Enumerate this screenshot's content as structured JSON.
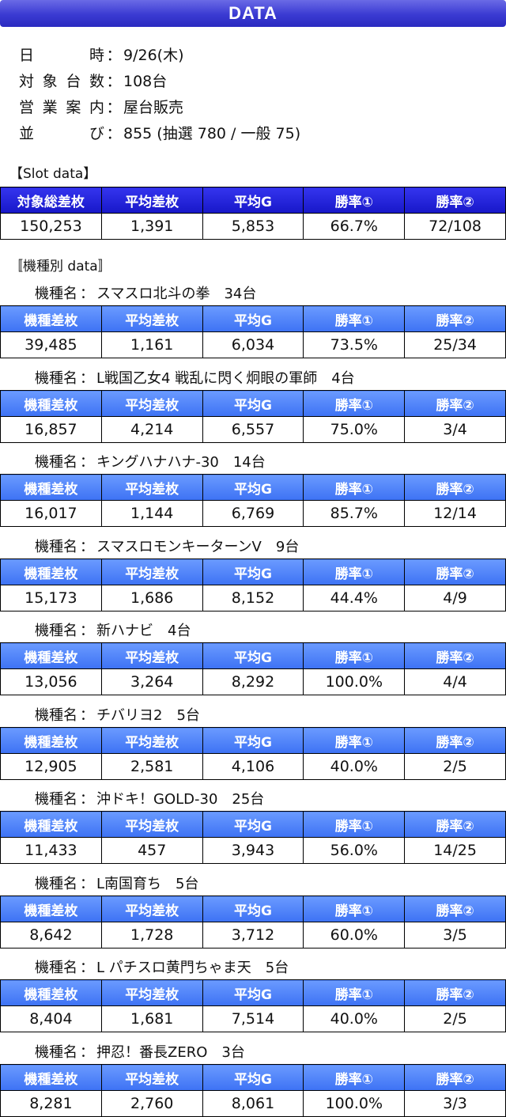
{
  "banner_title": "DATA",
  "info": [
    {
      "key": "日時",
      "value": "9/26(木)"
    },
    {
      "key": "対象台数",
      "value": "108台"
    },
    {
      "key": "営業案内",
      "value": "屋台販売"
    },
    {
      "key": "並び",
      "value": "855 (抽選 780 / 一般 75)"
    }
  ],
  "info_separator": "：",
  "slot_section_label": "【Slot data】",
  "slot_headers": [
    "対象総差枚",
    "平均差枚",
    "平均G",
    "勝率①",
    "勝率②"
  ],
  "slot_values": [
    "150,253",
    "1,391",
    "5,853",
    "66.7%",
    "72/108"
  ],
  "model_section_label": "〚機種別 data〛",
  "model_label_prefix": "機種名",
  "model_headers": [
    "機種差枚",
    "平均差枚",
    "平均G",
    "勝率①",
    "勝率②"
  ],
  "models": [
    {
      "name": "スマスロ北斗の拳　34台",
      "values": [
        "39,485",
        "1,161",
        "6,034",
        "73.5%",
        "25/34"
      ]
    },
    {
      "name": "L戦国乙女4 戦乱に閃く炯眼の軍師　4台",
      "values": [
        "16,857",
        "4,214",
        "6,557",
        "75.0%",
        "3/4"
      ]
    },
    {
      "name": "キングハナハナ-30　14台",
      "values": [
        "16,017",
        "1,144",
        "6,769",
        "85.7%",
        "12/14"
      ]
    },
    {
      "name": "スマスロモンキーターンV　9台",
      "values": [
        "15,173",
        "1,686",
        "8,152",
        "44.4%",
        "4/9"
      ]
    },
    {
      "name": "新ハナビ　4台",
      "values": [
        "13,056",
        "3,264",
        "8,292",
        "100.0%",
        "4/4"
      ]
    },
    {
      "name": "チバリヨ2　5台",
      "values": [
        "12,905",
        "2,581",
        "4,106",
        "40.0%",
        "2/5"
      ]
    },
    {
      "name": "沖ドキ！GOLD-30　25台",
      "values": [
        "11,433",
        "457",
        "3,943",
        "56.0%",
        "14/25"
      ]
    },
    {
      "name": "L南国育ち　5台",
      "values": [
        "8,642",
        "1,728",
        "3,712",
        "60.0%",
        "3/5"
      ]
    },
    {
      "name": "L パチスロ黄門ちゃま天　5台",
      "values": [
        "8,404",
        "1,681",
        "7,514",
        "40.0%",
        "2/5"
      ]
    },
    {
      "name": "押忍！番長ZERO　3台",
      "values": [
        "8,281",
        "2,760",
        "8,061",
        "100.0%",
        "3/3"
      ]
    }
  ]
}
